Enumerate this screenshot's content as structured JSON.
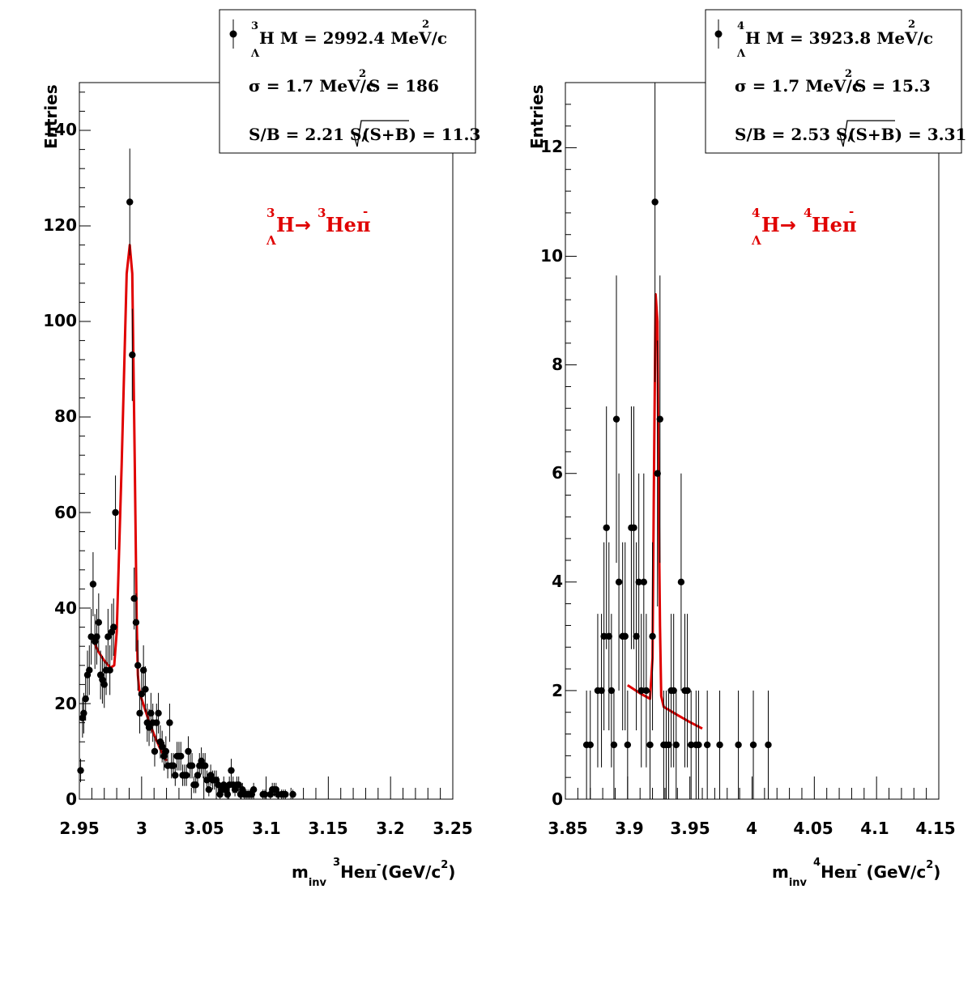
{
  "colors": {
    "fit": "#e00000",
    "points": "#000000",
    "frame": "#000000"
  },
  "chart_data": [
    {
      "type": "scatter",
      "ylabel": "Entries",
      "xlabel_parts": {
        "m": "m",
        "inv": "inv",
        "iso": "3",
        "he": "He",
        "pi": "π",
        "minus": "-",
        "unit": "(GeV/c",
        "two": "2",
        "close": ")"
      },
      "xlim": [
        2.95,
        3.25
      ],
      "ylim": [
        0,
        150
      ],
      "x_ticks": [
        2.95,
        3.0,
        3.05,
        3.1,
        3.15,
        3.2,
        3.25
      ],
      "x_tick_labels": [
        "2.95",
        "3",
        "3.05",
        "3.1",
        "3.15",
        "3.2",
        "3.25"
      ],
      "y_ticks": [
        0,
        20,
        40,
        60,
        80,
        100,
        120,
        140
      ],
      "y_tick_labels": [
        "0",
        "20",
        "40",
        "60",
        "80",
        "100",
        "120",
        "140"
      ],
      "legend": {
        "iso": "3",
        "lambda": "Λ",
        "line1": "H M = 2992.4 MeV/c",
        "line1_sup": "2",
        "line2a": "σ = 1.7 MeV/c",
        "line2_sup": "2",
        "line2b": "S =  186",
        "line3a": "S/B = 2.21  S/",
        "line3b": "(S+B) = 11.3"
      },
      "label": {
        "iso1": "3",
        "lambda": "Λ",
        "H": "H",
        "arrow": "→",
        "iso2": "3",
        "product": "Heπ",
        "minus": "-"
      },
      "points": [
        [
          2.951,
          6
        ],
        [
          2.9525,
          17
        ],
        [
          2.9535,
          18
        ],
        [
          2.955,
          21
        ],
        [
          2.9565,
          26
        ],
        [
          2.958,
          27
        ],
        [
          2.9595,
          34
        ],
        [
          2.961,
          45
        ],
        [
          2.9625,
          33
        ],
        [
          2.964,
          34
        ],
        [
          2.9655,
          37
        ],
        [
          2.967,
          26
        ],
        [
          2.9685,
          25
        ],
        [
          2.97,
          24
        ],
        [
          2.9715,
          27
        ],
        [
          2.973,
          34
        ],
        [
          2.9745,
          27
        ],
        [
          2.976,
          35
        ],
        [
          2.9775,
          36
        ],
        [
          2.979,
          60
        ],
        [
          2.9905,
          125
        ],
        [
          2.9925,
          93
        ],
        [
          2.994,
          42
        ],
        [
          2.9955,
          37
        ],
        [
          2.997,
          28
        ],
        [
          2.9985,
          18
        ],
        [
          3.0,
          22
        ],
        [
          3.0015,
          27
        ],
        [
          3.003,
          23
        ],
        [
          3.0045,
          16
        ],
        [
          3.006,
          15
        ],
        [
          3.0075,
          18
        ],
        [
          3.009,
          16
        ],
        [
          3.0105,
          10
        ],
        [
          3.012,
          16
        ],
        [
          3.0135,
          18
        ],
        [
          3.015,
          12
        ],
        [
          3.0165,
          11
        ],
        [
          3.018,
          9
        ],
        [
          3.0195,
          10
        ],
        [
          3.021,
          7
        ],
        [
          3.0225,
          16
        ],
        [
          3.024,
          7
        ],
        [
          3.0255,
          7
        ],
        [
          3.027,
          5
        ],
        [
          3.0285,
          9
        ],
        [
          3.03,
          9
        ],
        [
          3.0315,
          9
        ],
        [
          3.033,
          5
        ],
        [
          3.0345,
          5
        ],
        [
          3.036,
          5
        ],
        [
          3.0375,
          10
        ],
        [
          3.039,
          7
        ],
        [
          3.0405,
          7
        ],
        [
          3.042,
          3
        ],
        [
          3.0435,
          3
        ],
        [
          3.045,
          5
        ],
        [
          3.0465,
          7
        ],
        [
          3.048,
          8
        ],
        [
          3.0495,
          7
        ],
        [
          3.051,
          7
        ],
        [
          3.0525,
          4
        ],
        [
          3.054,
          2
        ],
        [
          3.0555,
          5
        ],
        [
          3.057,
          4
        ],
        [
          3.0585,
          4
        ],
        [
          3.06,
          4
        ],
        [
          3.0615,
          3
        ],
        [
          3.063,
          1
        ],
        [
          3.0645,
          2
        ],
        [
          3.066,
          3
        ],
        [
          3.0675,
          2
        ],
        [
          3.069,
          1
        ],
        [
          3.0705,
          3
        ],
        [
          3.072,
          6
        ],
        [
          3.0735,
          3
        ],
        [
          3.075,
          2
        ],
        [
          3.0765,
          3
        ],
        [
          3.078,
          3
        ],
        [
          3.0795,
          1
        ],
        [
          3.081,
          2
        ],
        [
          3.0825,
          1
        ],
        [
          3.084,
          1
        ],
        [
          3.0855,
          1
        ],
        [
          3.087,
          1
        ],
        [
          3.0885,
          1
        ],
        [
          3.09,
          2
        ],
        [
          3.0975,
          1
        ],
        [
          3.099,
          1
        ],
        [
          3.1035,
          1
        ],
        [
          3.105,
          2
        ],
        [
          3.1065,
          2
        ],
        [
          3.108,
          2
        ],
        [
          3.1095,
          1
        ],
        [
          3.1125,
          1
        ],
        [
          3.114,
          1
        ],
        [
          3.1155,
          1
        ],
        [
          3.1215,
          1
        ]
      ],
      "fit": [
        [
          2.96,
          34
        ],
        [
          2.965,
          31
        ],
        [
          2.97,
          29
        ],
        [
          2.975,
          27.5
        ],
        [
          2.978,
          28
        ],
        [
          2.98,
          35
        ],
        [
          2.984,
          70
        ],
        [
          2.988,
          110
        ],
        [
          2.9905,
          116
        ],
        [
          2.9925,
          110
        ],
        [
          2.9945,
          70
        ],
        [
          2.996,
          38
        ],
        [
          2.997,
          26
        ],
        [
          2.998,
          23
        ],
        [
          3.0,
          21
        ],
        [
          3.005,
          17
        ],
        [
          3.01,
          13.5
        ],
        [
          3.015,
          10.5
        ],
        [
          3.02,
          8
        ]
      ]
    },
    {
      "type": "scatter",
      "ylabel": "Entries",
      "xlabel_parts": {
        "m": "m",
        "inv": "inv",
        "iso": "4",
        "he": "He",
        "pi": "π",
        "minus": "-",
        "unit": "(GeV/c",
        "two": "2",
        "close": ")"
      },
      "xlim": [
        3.85,
        4.15
      ],
      "ylim": [
        0,
        13.2
      ],
      "x_ticks": [
        3.85,
        3.9,
        3.95,
        4.0,
        4.05,
        4.1,
        4.15
      ],
      "x_tick_labels": [
        "3.85",
        "3.9",
        "3.95",
        "4",
        "4.05",
        "4.1",
        "4.15"
      ],
      "y_ticks": [
        0,
        2,
        4,
        6,
        8,
        10,
        12
      ],
      "y_tick_labels": [
        "0",
        "2",
        "4",
        "6",
        "8",
        "10",
        "12"
      ],
      "legend": {
        "iso": "4",
        "lambda": "Λ",
        "line1": "H M = 3923.8 MeV/c",
        "line1_sup": "2",
        "line2a": "σ = 1.7 MeV/c",
        "line2_sup": "2",
        "line2b": "S = 15.3",
        "line3a": "S/B = 2.53  S/",
        "line3b": "(S+B) = 3.31"
      },
      "label": {
        "iso1": "4",
        "lambda": "Λ",
        "H": "H",
        "arrow": "→",
        "iso2": "4",
        "product": "Heπ",
        "minus": "-"
      },
      "points": [
        [
          3.867,
          1
        ],
        [
          3.87,
          1
        ],
        [
          3.876,
          2
        ],
        [
          3.879,
          2
        ],
        [
          3.881,
          3
        ],
        [
          3.883,
          5
        ],
        [
          3.885,
          3
        ],
        [
          3.887,
          2
        ],
        [
          3.889,
          1
        ],
        [
          3.891,
          7
        ],
        [
          3.893,
          4
        ],
        [
          3.896,
          3
        ],
        [
          3.898,
          3
        ],
        [
          3.9,
          1
        ],
        [
          3.903,
          5
        ],
        [
          3.905,
          5
        ],
        [
          3.907,
          3
        ],
        [
          3.909,
          4
        ],
        [
          3.911,
          2
        ],
        [
          3.913,
          4
        ],
        [
          3.915,
          2
        ],
        [
          3.918,
          1
        ],
        [
          3.92,
          3
        ],
        [
          3.922,
          11
        ],
        [
          3.924,
          6
        ],
        [
          3.926,
          7
        ],
        [
          3.929,
          1
        ],
        [
          3.931,
          1
        ],
        [
          3.933,
          1
        ],
        [
          3.935,
          2
        ],
        [
          3.937,
          2
        ],
        [
          3.939,
          1
        ],
        [
          3.943,
          4
        ],
        [
          3.946,
          2
        ],
        [
          3.948,
          2
        ],
        [
          3.951,
          1
        ],
        [
          3.955,
          1
        ],
        [
          3.957,
          1
        ],
        [
          3.964,
          1
        ],
        [
          3.974,
          1
        ],
        [
          3.989,
          1
        ],
        [
          4.001,
          1
        ],
        [
          4.013,
          1
        ]
      ],
      "fit": [
        [
          3.9,
          2.1
        ],
        [
          3.91,
          1.95
        ],
        [
          3.918,
          1.85
        ],
        [
          3.92,
          2.6
        ],
        [
          3.921,
          5.5
        ],
        [
          3.9225,
          9.3
        ],
        [
          3.924,
          8.8
        ],
        [
          3.925,
          5.5
        ],
        [
          3.926,
          3.2
        ],
        [
          3.927,
          1.9
        ],
        [
          3.929,
          1.7
        ],
        [
          3.94,
          1.55
        ],
        [
          3.95,
          1.42
        ],
        [
          3.96,
          1.3
        ]
      ]
    }
  ]
}
